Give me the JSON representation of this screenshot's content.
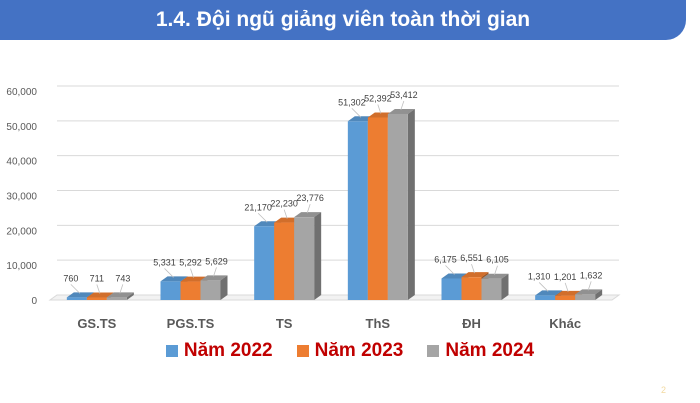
{
  "slide": {
    "title": "1.4. Đội ngũ giảng viên toàn thời gian",
    "page_number": "2"
  },
  "colors": {
    "banner": "#4472c4",
    "legend_text": "#c00000"
  },
  "chart_data": {
    "type": "bar",
    "title": "",
    "xlabel": "",
    "ylabel": "",
    "categories": [
      "GS.TS",
      "PGS.TS",
      "TS",
      "ThS",
      "ĐH",
      "Khác"
    ],
    "y_ticks": [
      "0",
      "10,000",
      "20,000",
      "30,000",
      "40,000",
      "50,000",
      "60,000"
    ],
    "ylim": [
      0,
      60000
    ],
    "grid": true,
    "legend_position": "bottom",
    "series": [
      {
        "name": "Năm 2022",
        "color": "#5b9bd5",
        "values": [
          760,
          5331,
          21170,
          51302,
          6175,
          1310
        ],
        "labels": [
          "760",
          "5,331",
          "21,170",
          "51,302",
          "6,175",
          "1,310"
        ]
      },
      {
        "name": "Năm 2023",
        "color": "#ed7d31",
        "values": [
          711,
          5292,
          22230,
          52392,
          6551,
          1201
        ],
        "labels": [
          "711",
          "5,292",
          "22,230",
          "52,392",
          "6,551",
          "1,201"
        ]
      },
      {
        "name": "Năm 2024",
        "color": "#a5a5a5",
        "values": [
          743,
          5629,
          23776,
          53412,
          6105,
          1632
        ],
        "labels": [
          "743",
          "5,629",
          "23,776",
          "53,412",
          "6,105",
          "1,632"
        ]
      }
    ]
  }
}
